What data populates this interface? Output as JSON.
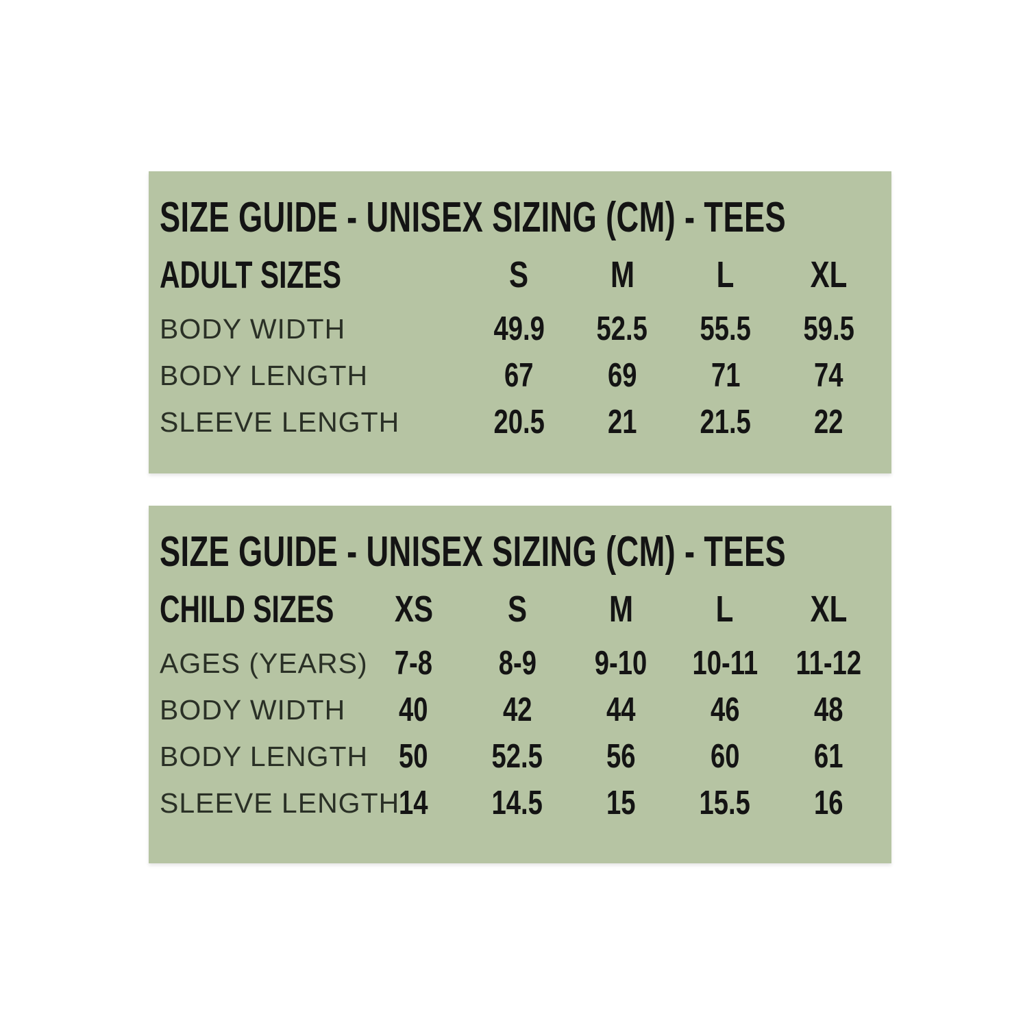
{
  "style": {
    "background": "#ffffff",
    "panel_color": "#b6c4a3",
    "heading_color": "#141414",
    "row_label_color": "#2a3026"
  },
  "chart_data": [
    {
      "type": "table",
      "title": "SIZE GUIDE - UNISEX SIZING (CM) - TEES",
      "section_label": "ADULT SIZES",
      "columns": [
        "S",
        "M",
        "L",
        "XL"
      ],
      "rows": [
        {
          "label": "BODY WIDTH",
          "values": [
            "49.9",
            "52.5",
            "55.5",
            "59.5"
          ]
        },
        {
          "label": "BODY LENGTH",
          "values": [
            "67",
            "69",
            "71",
            "74"
          ]
        },
        {
          "label": "SLEEVE LENGTH",
          "values": [
            "20.5",
            "21",
            "21.5",
            "22"
          ]
        }
      ]
    },
    {
      "type": "table",
      "title": "SIZE GUIDE - UNISEX SIZING (CM) - TEES",
      "section_label": "CHILD SIZES",
      "columns": [
        "XS",
        "S",
        "M",
        "L",
        "XL"
      ],
      "rows": [
        {
          "label": "AGES (YEARS)",
          "values": [
            "7-8",
            "8-9",
            "9-10",
            "10-11",
            "11-12"
          ]
        },
        {
          "label": "BODY WIDTH",
          "values": [
            "40",
            "42",
            "44",
            "46",
            "48"
          ]
        },
        {
          "label": "BODY LENGTH",
          "values": [
            "50",
            "52.5",
            "56",
            "60",
            "61"
          ]
        },
        {
          "label": "SLEEVE LENGTH",
          "values": [
            "14",
            "14.5",
            "15",
            "15.5",
            "16"
          ]
        }
      ]
    }
  ]
}
